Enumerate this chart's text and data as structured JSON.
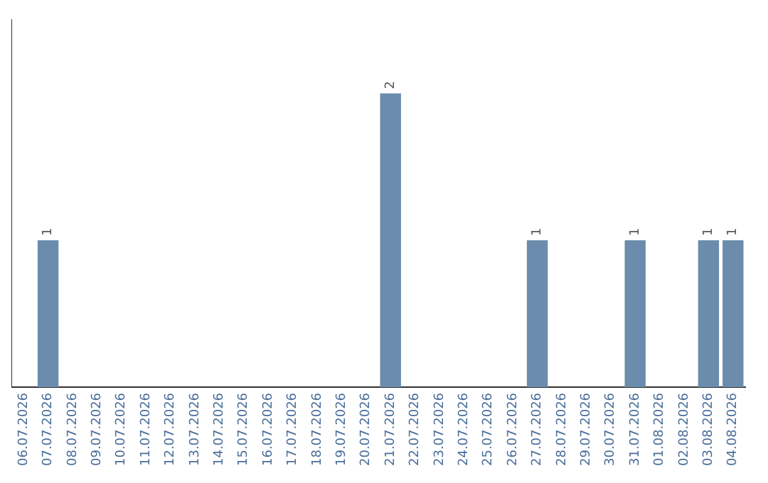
{
  "chart_data": {
    "type": "bar",
    "categories": [
      "06.07.2026",
      "07.07.2026",
      "08.07.2026",
      "09.07.2026",
      "10.07.2026",
      "11.07.2026",
      "12.07.2026",
      "13.07.2026",
      "14.07.2026",
      "15.07.2026",
      "16.07.2026",
      "17.07.2026",
      "18.07.2026",
      "19.07.2026",
      "20.07.2026",
      "21.07.2026",
      "22.07.2026",
      "23.07.2026",
      "24.07.2026",
      "25.07.2026",
      "26.07.2026",
      "27.07.2026",
      "28.07.2026",
      "29.07.2026",
      "30.07.2026",
      "31.07.2026",
      "01.08.2026",
      "02.08.2026",
      "03.08.2026",
      "04.08.2026"
    ],
    "values": [
      0,
      1,
      0,
      0,
      0,
      0,
      0,
      0,
      0,
      0,
      0,
      0,
      0,
      0,
      0,
      2,
      0,
      0,
      0,
      0,
      0,
      1,
      0,
      0,
      0,
      1,
      0,
      0,
      1,
      1
    ],
    "value_labels": [
      null,
      "1",
      null,
      null,
      null,
      null,
      null,
      null,
      null,
      null,
      null,
      null,
      null,
      null,
      null,
      "2",
      null,
      null,
      null,
      null,
      null,
      "1",
      null,
      null,
      null,
      "1",
      null,
      null,
      "1",
      "1"
    ],
    "color": "#6b8cac",
    "grid": false,
    "legend": false,
    "tick_labels": "x"
  }
}
